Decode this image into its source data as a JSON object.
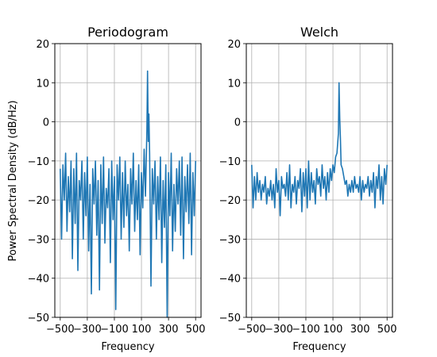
{
  "figure": {
    "ylabel": "Power Spectral Density (dB/Hz)"
  },
  "chart_data": [
    {
      "type": "line",
      "title": "Periodogram",
      "xlabel": "Frequency",
      "ylabel": "Power Spectral Density (dB/Hz)",
      "xlim": [
        -540,
        540
      ],
      "ylim": [
        -50,
        20
      ],
      "xticks": [
        -500,
        -300,
        -100,
        100,
        300,
        500
      ],
      "xtick_labels": [
        "−500",
        "−300",
        "−100",
        "100",
        "300",
        "500"
      ],
      "yticks": [
        -50,
        -40,
        -30,
        -20,
        -10,
        0,
        10,
        20
      ],
      "ytick_labels": [
        "−50",
        "−40",
        "−30",
        "−20",
        "−10",
        "0",
        "10",
        "20"
      ],
      "grid": true,
      "color": "#1f77b4",
      "series": [
        {
          "x": [
            -500,
            -490,
            -480,
            -470,
            -460,
            -450,
            -440,
            -430,
            -420,
            -410,
            -400,
            -390,
            -380,
            -370,
            -360,
            -350,
            -340,
            -330,
            -320,
            -310,
            -300,
            -290,
            -280,
            -270,
            -260,
            -250,
            -240,
            -230,
            -220,
            -210,
            -200,
            -190,
            -180,
            -170,
            -160,
            -150,
            -140,
            -130,
            -120,
            -110,
            -100,
            -90,
            -80,
            -70,
            -60,
            -50,
            -40,
            -30,
            -20,
            -10,
            0,
            10,
            20,
            30,
            40,
            50,
            60,
            70,
            80,
            90,
            100,
            110,
            120,
            130,
            140,
            145,
            150,
            155,
            160,
            170,
            180,
            190,
            200,
            210,
            220,
            230,
            240,
            250,
            260,
            270,
            280,
            290,
            300,
            310,
            320,
            330,
            340,
            350,
            360,
            370,
            380,
            390,
            400,
            410,
            420,
            430,
            440,
            450,
            460,
            470,
            480,
            490,
            500
          ],
          "y": [
            -12,
            -30,
            -11,
            -20,
            -8,
            -28,
            -14,
            -23,
            -10,
            -35,
            -12,
            -26,
            -8,
            -38,
            -15,
            -20,
            -10,
            -30,
            -13,
            -24,
            -9,
            -33,
            -16,
            -44,
            -12,
            -21,
            -10,
            -29,
            -15,
            -43,
            -11,
            -26,
            -9,
            -31,
            -17,
            -22,
            -12,
            -36,
            -10,
            -25,
            -14,
            -48,
            -11,
            -20,
            -9,
            -30,
            -13,
            -27,
            -10,
            -24,
            -16,
            -33,
            -12,
            -21,
            -8,
            -28,
            -15,
            -25,
            -11,
            -34,
            -13,
            -22,
            -7,
            -19,
            -2,
            13,
            -5,
            2,
            -8,
            -42,
            -12,
            -21,
            -10,
            -30,
            -14,
            -25,
            -9,
            -36,
            -15,
            -27,
            -11,
            -51,
            -13,
            -24,
            -8,
            -33,
            -16,
            -28,
            -12,
            -21,
            -10,
            -29,
            -9,
            -35,
            -14,
            -23,
            -11,
            -26,
            -8,
            -34,
            -13,
            -24,
            -10
          ]
        }
      ]
    },
    {
      "type": "line",
      "title": "Welch",
      "xlabel": "Frequency",
      "ylabel": "",
      "xlim": [
        -540,
        540
      ],
      "ylim": [
        -50,
        20
      ],
      "xticks": [
        -500,
        -300,
        -100,
        100,
        300,
        500
      ],
      "xtick_labels": [
        "−500",
        "−300",
        "−100",
        "100",
        "300",
        "500"
      ],
      "yticks": [
        -50,
        -40,
        -30,
        -20,
        -10,
        0,
        10,
        20
      ],
      "ytick_labels": [
        "−50",
        "−40",
        "−30",
        "−20",
        "−10",
        "0",
        "10",
        "20"
      ],
      "grid": true,
      "color": "#1f77b4",
      "series": [
        {
          "x": [
            -500,
            -490,
            -480,
            -470,
            -460,
            -450,
            -440,
            -430,
            -420,
            -410,
            -400,
            -390,
            -380,
            -370,
            -360,
            -350,
            -340,
            -330,
            -320,
            -310,
            -300,
            -290,
            -280,
            -270,
            -260,
            -250,
            -240,
            -230,
            -220,
            -210,
            -200,
            -190,
            -180,
            -170,
            -160,
            -150,
            -140,
            -130,
            -120,
            -110,
            -100,
            -90,
            -80,
            -70,
            -60,
            -50,
            -40,
            -30,
            -20,
            -10,
            0,
            10,
            20,
            30,
            40,
            50,
            60,
            70,
            80,
            90,
            100,
            110,
            120,
            130,
            140,
            145,
            150,
            155,
            160,
            170,
            180,
            190,
            200,
            210,
            220,
            230,
            240,
            250,
            260,
            270,
            280,
            290,
            300,
            310,
            320,
            330,
            340,
            350,
            360,
            370,
            380,
            390,
            400,
            410,
            420,
            430,
            440,
            450,
            460,
            470,
            480,
            490,
            500
          ],
          "y": [
            -11,
            -22,
            -14,
            -20,
            -13,
            -18,
            -15,
            -20,
            -16,
            -18,
            -14,
            -21,
            -17,
            -19,
            -15,
            -20,
            -16,
            -22,
            -12,
            -18,
            -15,
            -24,
            -14,
            -17,
            -16,
            -19,
            -13,
            -20,
            -11,
            -22,
            -16,
            -18,
            -14,
            -21,
            -15,
            -17,
            -12,
            -23,
            -13,
            -19,
            -12,
            -22,
            -10,
            -20,
            -13,
            -18,
            -15,
            -21,
            -12,
            -16,
            -14,
            -19,
            -11,
            -17,
            -14,
            -20,
            -13,
            -18,
            -12,
            -15,
            -11,
            -13,
            -9,
            -8,
            -3,
            10,
            1,
            -4,
            -11,
            -12,
            -14,
            -16,
            -15,
            -19,
            -16,
            -18,
            -15,
            -18,
            -14,
            -17,
            -16,
            -18,
            -14,
            -20,
            -15,
            -18,
            -16,
            -17,
            -14,
            -19,
            -15,
            -18,
            -13,
            -22,
            -14,
            -17,
            -11,
            -20,
            -14,
            -21,
            -12,
            -16,
            -11
          ]
        }
      ]
    }
  ]
}
